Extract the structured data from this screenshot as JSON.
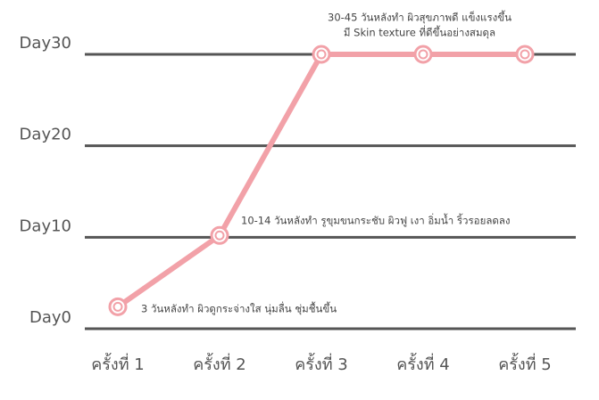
{
  "chart_data": {
    "type": "line",
    "categories": [
      "ครั้งที่ 1",
      "ครั้งที่ 2",
      "ครั้งที่ 3",
      "ครั้งที่ 4",
      "ครั้งที่ 5"
    ],
    "values": [
      2.4,
      10.2,
      30,
      30,
      30
    ],
    "color": "#f2a1a8",
    "ylim": [
      0,
      30
    ],
    "yticks": [
      {
        "value": 0,
        "label": "Day0"
      },
      {
        "value": 10,
        "label": "Day10"
      },
      {
        "value": 20,
        "label": "Day20"
      },
      {
        "value": 30,
        "label": "Day30"
      }
    ],
    "grid": true,
    "annotations": [
      "3 วันหลังทำ ผิวดูกระจ่างใส นุ่มลื่น ชุ่มชื้นขึ้น",
      "10-14 วันหลังทำ รูขุมขนกระชับ ผิวฟู เงา อิ่มน้ำ ริ้วรอยลดลง",
      "30-45 วันหลังทำ ผิวสุขภาพดี แข็งแรงขึ้น",
      "มี Skin texture ที่ดีขึ้นอย่างสมดุล"
    ]
  }
}
